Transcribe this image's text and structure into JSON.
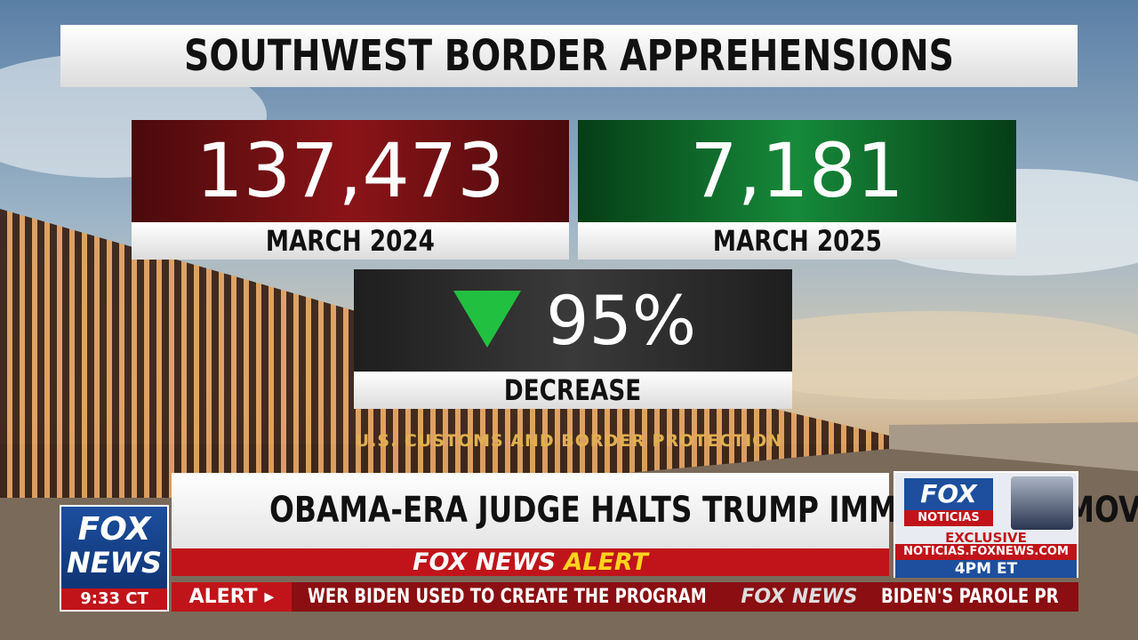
{
  "graphic": {
    "title": "SOUTHWEST BORDER APPREHENSIONS",
    "stats": [
      {
        "value": "137,473",
        "label": "MARCH 2024"
      },
      {
        "value": "7,181",
        "label": "MARCH 2025"
      }
    ],
    "change": {
      "value": "95%",
      "label": "DECREASE"
    },
    "source": "U.S. CUSTOMS AND BORDER PROTECTION"
  },
  "lower_third": {
    "headline": "OBAMA-ERA JUDGE HALTS TRUMP IMMIGRATION MOVE",
    "alert_brand": "FOX NEWS",
    "alert_word": "ALERT"
  },
  "logo": {
    "line1": "FOX",
    "line2": "NEWS",
    "time": "9:33 CT"
  },
  "ticker": {
    "label": "ALERT ▸",
    "items": [
      "WER BIDEN USED TO CREATE THE PROGRAM",
      "BIDEN'S PAROLE PR"
    ],
    "brand": "FOX NEWS"
  },
  "promo": {
    "brand": "FOX",
    "sub_brand": "NOTICIAS",
    "tag": "EXCLUSIVE",
    "url": "NOTICIAS.FOXNEWS.COM",
    "time": "4PM ET"
  }
}
